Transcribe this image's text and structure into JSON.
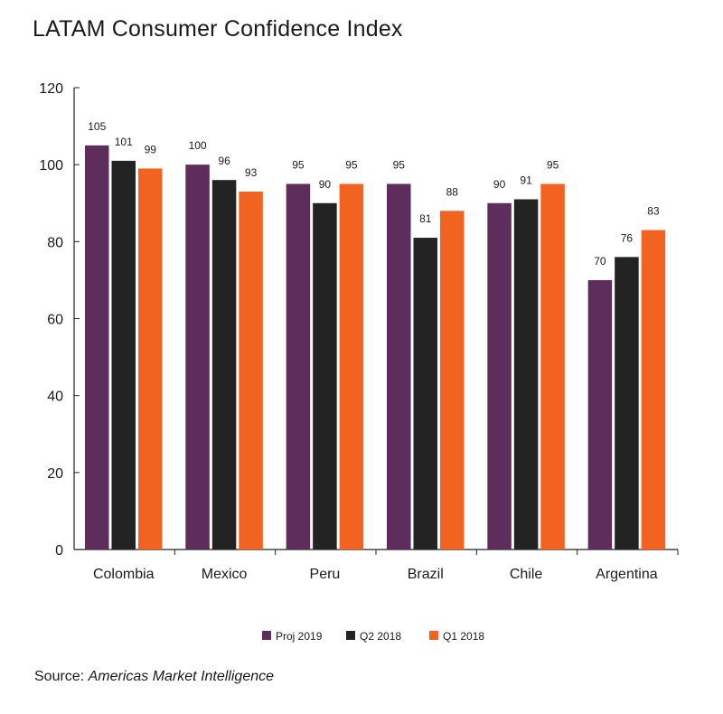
{
  "title": "LATAM Consumer Confidence Index",
  "source": {
    "label": "Source:",
    "name": "Americas Market Intelligence"
  },
  "colors": {
    "Proj 2019": "#5e2d5c",
    "Q2 2018": "#232323",
    "Q1 2018": "#f26322"
  },
  "chart_data": {
    "type": "bar",
    "title": "LATAM Consumer Confidence Index",
    "xlabel": "",
    "ylabel": "",
    "ylim": [
      0,
      120
    ],
    "yticks": [
      0,
      20,
      40,
      60,
      80,
      100,
      120
    ],
    "grid": false,
    "legend": "bottom-center",
    "categories": [
      "Colombia",
      "Mexico",
      "Peru",
      "Brazil",
      "Chile",
      "Argentina"
    ],
    "series": [
      {
        "name": "Proj 2019",
        "values": [
          105,
          100,
          95,
          95,
          90,
          70
        ]
      },
      {
        "name": "Q2 2018",
        "values": [
          101,
          96,
          90,
          81,
          91,
          76
        ]
      },
      {
        "name": "Q1 2018",
        "values": [
          99,
          93,
          95,
          88,
          95,
          83
        ]
      }
    ]
  }
}
